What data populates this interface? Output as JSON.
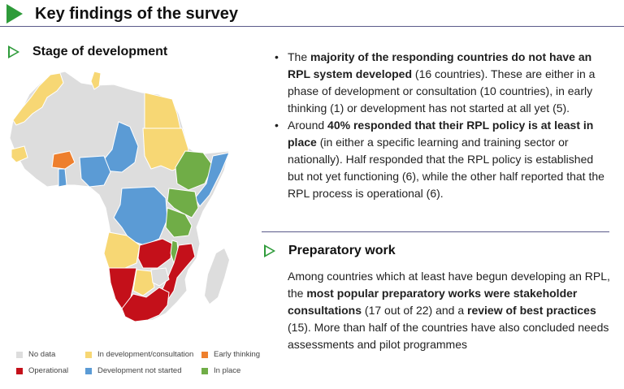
{
  "header": {
    "title": "Key findings of the survey"
  },
  "stage": {
    "heading": "Stage of development"
  },
  "prep": {
    "heading": "Preparatory work"
  },
  "colors": {
    "no_data": "#dddddd",
    "in_development": "#f7d774",
    "early_thinking": "#ee7f2d",
    "operational": "#c4101a",
    "not_started": "#5b9bd5",
    "in_place": "#70ad47"
  },
  "legend": {
    "no_data": "No data",
    "in_development": "In development/consultation",
    "early_thinking": "Early thinking",
    "operational": "Operational",
    "not_started": "Development not started",
    "in_place": "In place"
  },
  "bullet1": {
    "a": "The ",
    "b": "majority of the responding countries do not have an RPL system developed",
    "c": " (16 countries). These are either in a phase of development or consultation (10 countries), in early thinking (1) or development has not started at all yet (5)."
  },
  "bullet2": {
    "a": "Around ",
    "b": "40% responded that their RPL policy is at least in place",
    "c": " (in either a specific learning and training sector or nationally). Half responded that the RPL policy is established but not yet functioning (6), while the other half reported that the RPL process is operational (6)."
  },
  "para": {
    "a": "Among countries which at least have begun developing an RPL, the ",
    "b": "most popular preparatory works were stakeholder consultations",
    "c": " (17 out of 22) and a ",
    "d": "review of best practices",
    "e": " (15). More than half of the countries have also concluded needs assessments and pilot programmes"
  }
}
